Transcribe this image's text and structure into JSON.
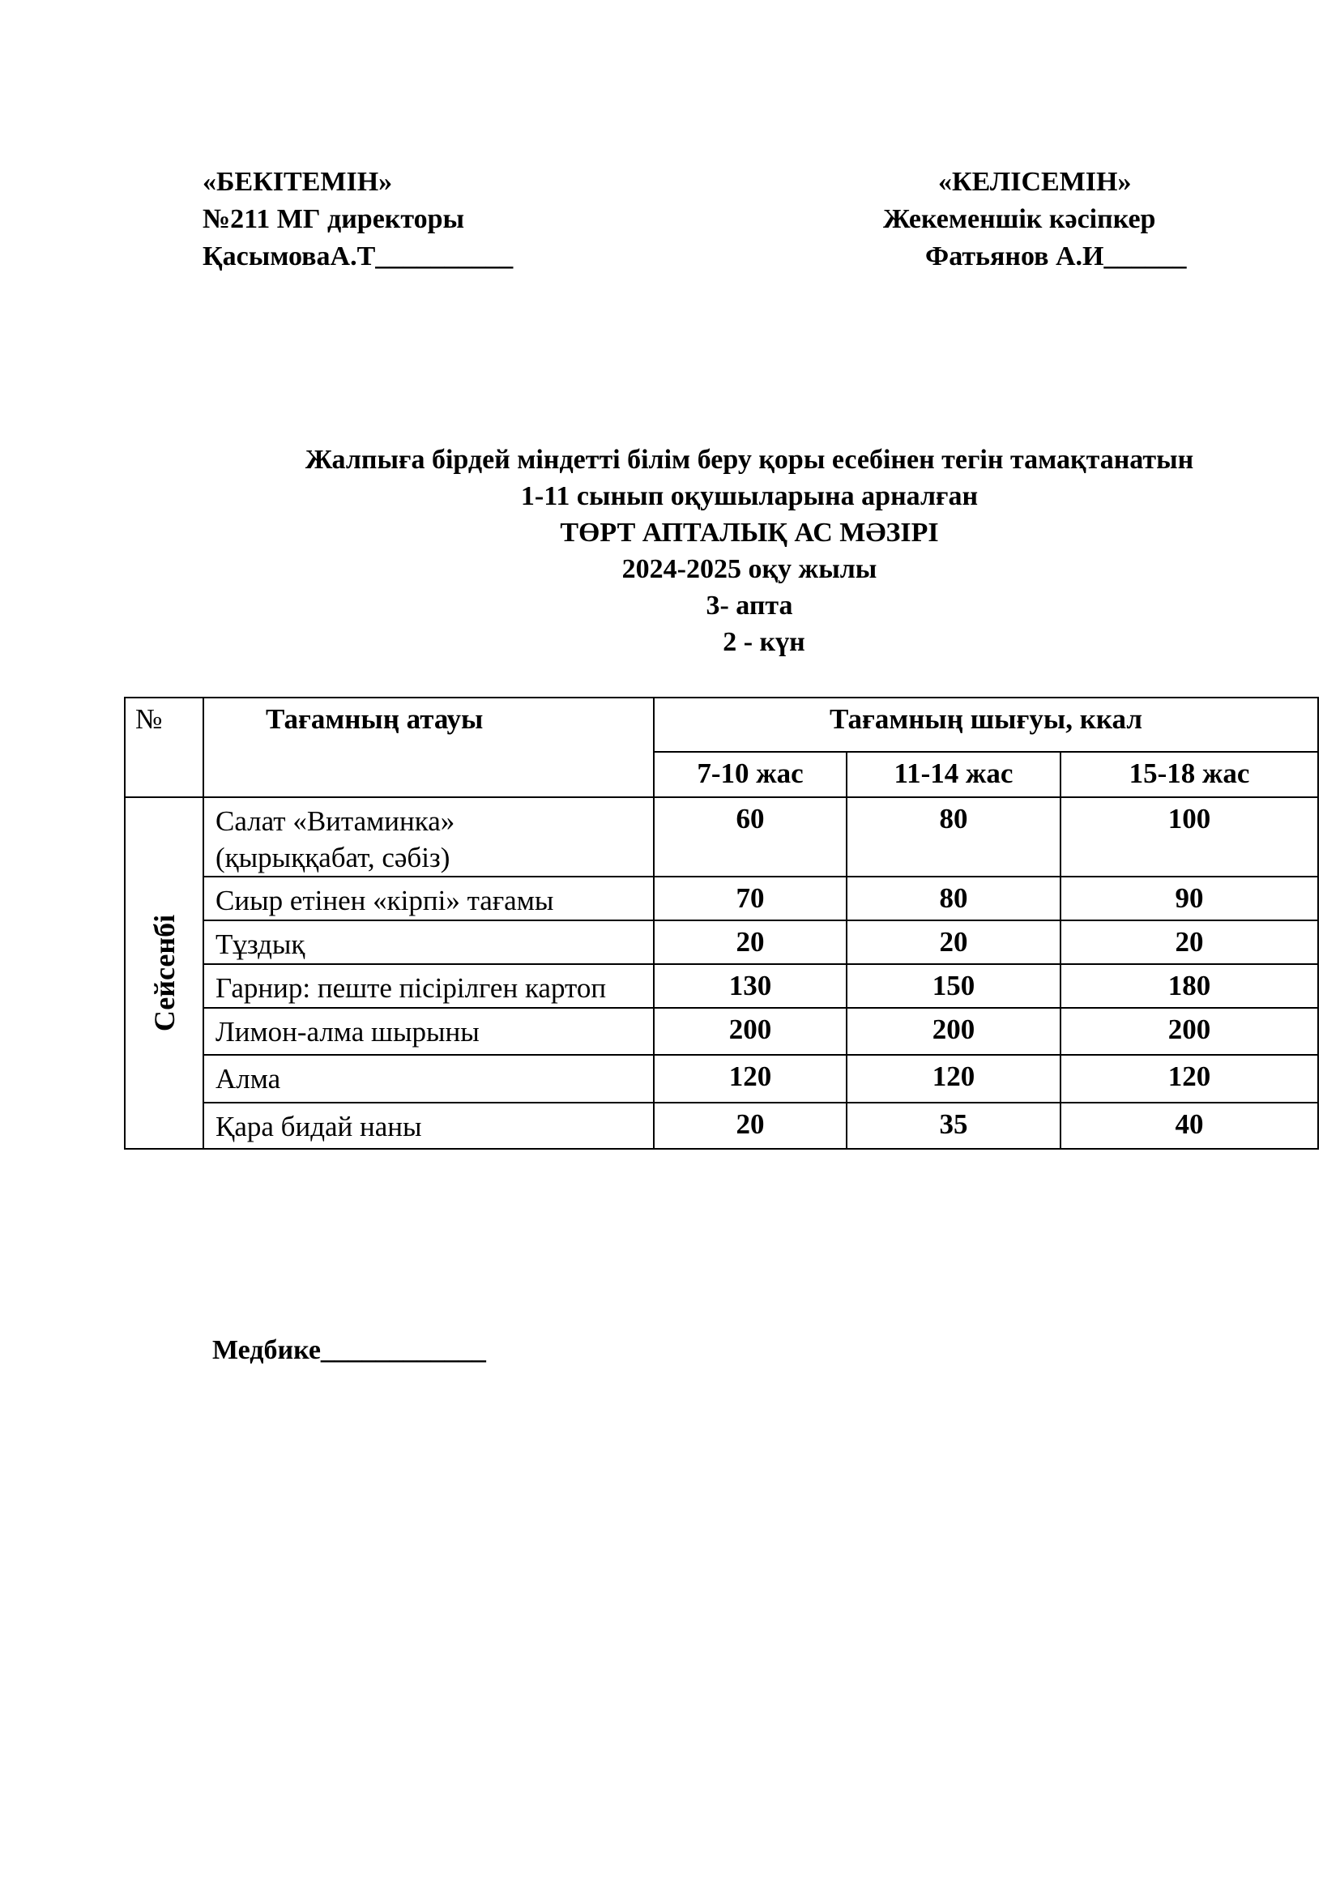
{
  "approval_left": {
    "line1": "«БЕКІТЕМІН»",
    "line2": "№211 МГ директоры",
    "line3": "ҚасымоваА.Т__________"
  },
  "approval_right": {
    "line1": "«КЕЛІСЕМІН»",
    "line2": "Жекеменшік кәсіпкер",
    "line3": "Фатьянов А.И______"
  },
  "title": {
    "line1": "Жалпыға бірдей  міндетті білім беру қоры есебінен тегін тамақтанатын",
    "line2": "1-11 сынып оқушыларына арналған",
    "line3": "ТӨРТ АПТАЛЫҚ АС МӘЗІРІ",
    "line4": "2024-2025 оқу жылы",
    "line5": "3- апта",
    "line6": "2 - күн"
  },
  "table": {
    "col_no": "№",
    "col_name": "Тағамның атауы",
    "col_yield": "Тағамның шығуы, ккал",
    "age_groups": [
      "7-10 жас",
      "11-14 жас",
      "15-18 жас"
    ],
    "day": "Сейсенбі",
    "rows": [
      {
        "name": "Салат «Витаминка» (қырыққабат, сәбіз)",
        "values": [
          "60",
          "80",
          "100"
        ]
      },
      {
        "name": "Сиыр етінен «кірпі» тағамы",
        "values": [
          "70",
          "80",
          "90"
        ]
      },
      {
        "name": "Тұздық",
        "values": [
          "20",
          "20",
          "20"
        ]
      },
      {
        "name": "Гарнир: пеште пісірілген картоп",
        "values": [
          "130",
          "150",
          "180"
        ]
      },
      {
        "name": "Лимон-алма шырыны",
        "values": [
          "200",
          "200",
          "200"
        ]
      },
      {
        "name": "Алма",
        "values": [
          "120",
          "120",
          "120"
        ]
      },
      {
        "name": "Қара бидай наны",
        "values": [
          "20",
          "35",
          "40"
        ]
      }
    ]
  },
  "footer": {
    "nurse": "Медбике____________"
  }
}
